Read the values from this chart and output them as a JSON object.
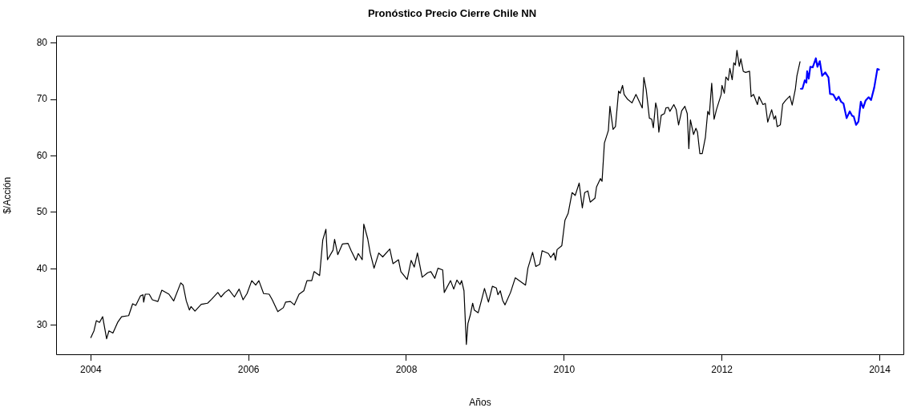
{
  "chart_data": {
    "type": "line",
    "title": "Pronóstico Precio Cierre Chile NN",
    "xlabel": "Años",
    "ylabel": "$/Acción",
    "xlim": [
      2003.56,
      2014.31
    ],
    "ylim": [
      24.7,
      81.3
    ],
    "xticks": [
      2004,
      2006,
      2008,
      2010,
      2012,
      2014
    ],
    "yticks": [
      30,
      40,
      50,
      60,
      70,
      80
    ],
    "grid": false,
    "legend": false,
    "marker": "none",
    "line_style": "solid",
    "series": [
      {
        "color": "#000000",
        "x": [
          2004.0,
          2004.04,
          2004.07,
          2004.11,
          2004.15,
          2004.2,
          2004.23,
          2004.28,
          2004.34,
          2004.39,
          2004.48,
          2004.53,
          2004.57,
          2004.63,
          2004.66,
          2004.67,
          2004.69,
          2004.74,
          2004.78,
          2004.85,
          2004.9,
          2004.99,
          2005.05,
          2005.14,
          2005.17,
          2005.21,
          2005.25,
          2005.27,
          2005.32,
          2005.4,
          2005.48,
          2005.53,
          2005.61,
          2005.65,
          2005.7,
          2005.75,
          2005.82,
          2005.88,
          2005.93,
          2005.98,
          2006.04,
          2006.09,
          2006.13,
          2006.19,
          2006.26,
          2006.3,
          2006.37,
          2006.44,
          2006.47,
          2006.53,
          2006.58,
          2006.64,
          2006.7,
          2006.74,
          2006.8,
          2006.83,
          2006.9,
          2006.94,
          2006.98,
          2007.0,
          2007.07,
          2007.09,
          2007.13,
          2007.19,
          2007.26,
          2007.3,
          2007.36,
          2007.39,
          2007.44,
          2007.46,
          2007.51,
          2007.54,
          2007.59,
          2007.65,
          2007.7,
          2007.79,
          2007.83,
          2007.9,
          2007.93,
          2008.01,
          2008.06,
          2008.1,
          2008.14,
          2008.2,
          2008.27,
          2008.31,
          2008.36,
          2008.4,
          2008.46,
          2008.48,
          2008.56,
          2008.6,
          2008.64,
          2008.68,
          2008.7,
          2008.73,
          2008.76,
          2008.78,
          2008.81,
          2008.84,
          2008.86,
          2008.91,
          2008.95,
          2008.99,
          2009.04,
          2009.09,
          2009.14,
          2009.16,
          2009.19,
          2009.22,
          2009.25,
          2009.32,
          2009.38,
          2009.45,
          2009.51,
          2009.54,
          2009.6,
          2009.64,
          2009.69,
          2009.72,
          2009.8,
          2009.83,
          2009.87,
          2009.89,
          2009.91,
          2009.97,
          2010.01,
          2010.05,
          2010.1,
          2010.14,
          2010.19,
          2010.23,
          2010.26,
          2010.3,
          2010.33,
          2010.39,
          2010.41,
          2010.46,
          2010.48,
          2010.51,
          2010.56,
          2010.58,
          2010.62,
          2010.65,
          2010.69,
          2010.71,
          2010.74,
          2010.76,
          2010.8,
          2010.86,
          2010.91,
          2010.99,
          2011.01,
          2011.04,
          2011.08,
          2011.11,
          2011.13,
          2011.16,
          2011.18,
          2011.2,
          2011.23,
          2011.27,
          2011.29,
          2011.32,
          2011.34,
          2011.39,
          2011.42,
          2011.45,
          2011.49,
          2011.53,
          2011.56,
          2011.58,
          2011.6,
          2011.64,
          2011.67,
          2011.69,
          2011.72,
          2011.75,
          2011.79,
          2011.82,
          2011.84,
          2011.87,
          2011.9,
          2011.93,
          2011.99,
          2012.0,
          2012.03,
          2012.05,
          2012.08,
          2012.1,
          2012.13,
          2012.15,
          2012.17,
          2012.19,
          2012.22,
          2012.24,
          2012.27,
          2012.3,
          2012.35,
          2012.37,
          2012.4,
          2012.45,
          2012.47,
          2012.52,
          2012.55,
          2012.58,
          2012.63,
          2012.66,
          2012.68,
          2012.7,
          2012.74,
          2012.77,
          2012.81,
          2012.86,
          2012.89,
          2012.93,
          2012.95,
          2012.99
        ],
        "values": [
          27.8,
          29.0,
          30.8,
          30.5,
          31.5,
          27.6,
          29.0,
          28.6,
          30.5,
          31.5,
          31.7,
          33.8,
          33.5,
          35.2,
          35.4,
          34.1,
          35.5,
          35.5,
          34.5,
          34.2,
          36.2,
          35.5,
          34.3,
          37.5,
          37.1,
          34.3,
          32.7,
          33.3,
          32.5,
          33.7,
          33.9,
          34.6,
          35.8,
          35.0,
          35.8,
          36.3,
          35.0,
          36.4,
          34.5,
          35.6,
          37.9,
          37.1,
          37.9,
          35.6,
          35.5,
          34.5,
          32.4,
          33.1,
          34.1,
          34.2,
          33.6,
          35.5,
          36.1,
          37.9,
          37.9,
          39.5,
          38.8,
          45.1,
          47.0,
          41.6,
          43.3,
          45.2,
          42.5,
          44.4,
          44.5,
          43.2,
          41.5,
          42.7,
          41.6,
          47.9,
          45.3,
          42.9,
          40.1,
          42.8,
          42.1,
          43.5,
          40.9,
          41.6,
          39.5,
          38.1,
          41.5,
          40.3,
          42.8,
          38.5,
          39.3,
          39.5,
          38.3,
          40.1,
          39.8,
          35.8,
          37.9,
          36.4,
          38.0,
          37.2,
          37.9,
          36.1,
          26.6,
          30.3,
          31.8,
          33.9,
          32.7,
          32.2,
          34.3,
          36.5,
          34.1,
          36.9,
          36.6,
          35.4,
          36.1,
          34.4,
          33.6,
          35.8,
          38.4,
          37.7,
          37.1,
          40.1,
          42.9,
          40.4,
          40.8,
          43.2,
          42.7,
          42.0,
          42.8,
          41.5,
          43.4,
          44.1,
          48.6,
          49.8,
          53.5,
          53.0,
          55.2,
          50.8,
          53.5,
          53.8,
          51.8,
          52.5,
          54.5,
          56.0,
          55.5,
          62.3,
          64.5,
          68.8,
          64.7,
          65.2,
          71.5,
          71.1,
          72.5,
          70.9,
          70.1,
          69.4,
          70.9,
          68.5,
          73.9,
          71.7,
          66.7,
          66.5,
          65.0,
          69.4,
          68.2,
          64.2,
          67.2,
          67.5,
          68.5,
          68.6,
          67.9,
          69.1,
          68.2,
          65.5,
          68.0,
          68.8,
          67.5,
          61.3,
          66.4,
          63.8,
          64.9,
          64.2,
          60.4,
          60.4,
          63.3,
          67.9,
          67.3,
          72.9,
          66.5,
          68.2,
          70.9,
          72.5,
          71.1,
          74.0,
          73.4,
          75.5,
          73.5,
          76.5,
          76.1,
          78.7,
          75.9,
          77.2,
          75.0,
          74.8,
          75.0,
          70.5,
          70.9,
          69.1,
          70.5,
          69.1,
          69.3,
          66.0,
          68.2,
          66.5,
          67.1,
          65.2,
          65.5,
          69.2,
          69.9,
          70.6,
          69.0,
          71.8,
          74.2,
          76.7
        ]
      },
      {
        "color": "#0000ff",
        "x": [
          2013.0,
          2013.02,
          2013.05,
          2013.07,
          2013.08,
          2013.1,
          2013.12,
          2013.15,
          2013.19,
          2013.21,
          2013.24,
          2013.27,
          2013.31,
          2013.35,
          2013.37,
          2013.41,
          2013.45,
          2013.48,
          2013.51,
          2013.54,
          2013.58,
          2013.62,
          2013.65,
          2013.67,
          2013.7,
          2013.73,
          2013.76,
          2013.79,
          2013.82,
          2013.86,
          2013.89,
          2013.93,
          2013.97,
          2013.99
        ],
        "values": [
          71.9,
          71.9,
          73.4,
          73.0,
          75.0,
          73.7,
          75.8,
          75.7,
          77.3,
          75.8,
          76.8,
          74.2,
          74.8,
          73.9,
          71.0,
          70.9,
          69.9,
          70.5,
          69.6,
          69.3,
          66.7,
          67.9,
          67.1,
          67.0,
          65.5,
          66.1,
          69.6,
          68.5,
          69.8,
          70.4,
          69.9,
          72.1,
          75.4,
          75.3
        ]
      }
    ]
  }
}
